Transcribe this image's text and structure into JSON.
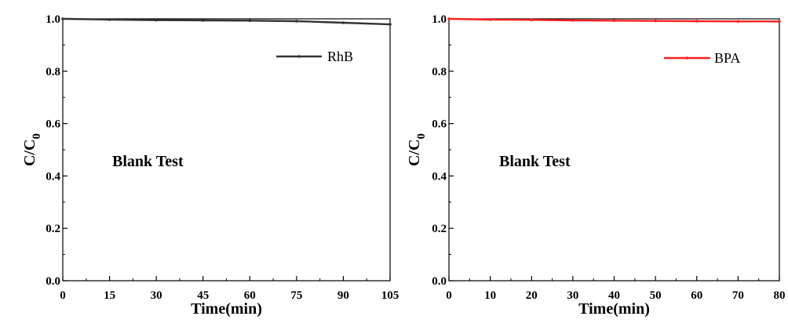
{
  "chart_data": [
    {
      "type": "line",
      "xlabel": "Time(min)",
      "ylabel_main": "C/C",
      "ylabel_sub": "0",
      "xlim": [
        0,
        105
      ],
      "ylim": [
        0.0,
        1.0
      ],
      "x_ticks": [
        "0",
        "15",
        "30",
        "45",
        "60",
        "75",
        "90",
        "105"
      ],
      "y_ticks": [
        "0.0",
        "0.2",
        "0.4",
        "0.6",
        "0.8",
        "1.0"
      ],
      "annotation": "Blank Test",
      "legend_position": "top-right",
      "grid": false,
      "series": [
        {
          "name": "RhB",
          "color": "#333333",
          "x": [
            0,
            15,
            30,
            45,
            60,
            75,
            90,
            105
          ],
          "y": [
            1.0,
            0.997,
            0.995,
            0.994,
            0.993,
            0.991,
            0.985,
            0.979
          ]
        }
      ]
    },
    {
      "type": "line",
      "xlabel": "Time(min)",
      "ylabel_main": "C/C",
      "ylabel_sub": "0",
      "xlim": [
        0,
        80
      ],
      "ylim": [
        0.0,
        1.0
      ],
      "x_ticks": [
        "0",
        "10",
        "20",
        "30",
        "40",
        "50",
        "60",
        "70",
        "80"
      ],
      "y_ticks": [
        "0.0",
        "0.2",
        "0.4",
        "0.6",
        "0.8",
        "1.0"
      ],
      "annotation": "Blank Test",
      "legend_position": "top-right",
      "grid": false,
      "series": [
        {
          "name": "BPA",
          "color": "#ff2020",
          "x": [
            0,
            10,
            20,
            30,
            40,
            50,
            60,
            70,
            80
          ],
          "y": [
            1.0,
            0.997,
            0.996,
            0.994,
            0.993,
            0.992,
            0.991,
            0.99,
            0.99
          ]
        }
      ]
    }
  ]
}
